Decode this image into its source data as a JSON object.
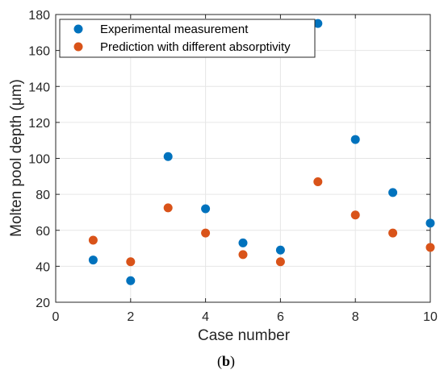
{
  "chart_data": {
    "type": "scatter",
    "xlabel": "Case number",
    "ylabel": "Molten pool depth (μm)",
    "xlim": [
      0,
      10
    ],
    "ylim": [
      20,
      180
    ],
    "xticks": [
      0,
      2,
      4,
      6,
      8,
      10
    ],
    "yticks": [
      20,
      40,
      60,
      80,
      100,
      120,
      140,
      160,
      180
    ],
    "grid": true,
    "legend_position": "top-left",
    "series": [
      {
        "name": "Experimental measurement",
        "color": "#0072BD",
        "x": [
          1,
          2,
          3,
          4,
          5,
          6,
          7,
          8,
          9,
          10
        ],
        "y": [
          43.5,
          32,
          101,
          72,
          53,
          49,
          175,
          110.5,
          81,
          64
        ]
      },
      {
        "name": "Prediction with different absorptivity",
        "color": "#D95319",
        "x": [
          1,
          2,
          3,
          4,
          5,
          6,
          7,
          8,
          9,
          10
        ],
        "y": [
          54.5,
          42.5,
          72.5,
          58.5,
          46.5,
          42.5,
          87,
          68.5,
          58.5,
          50.5
        ]
      }
    ]
  },
  "caption": {
    "prefix": "(",
    "letter": "b",
    "suffix": ")"
  }
}
